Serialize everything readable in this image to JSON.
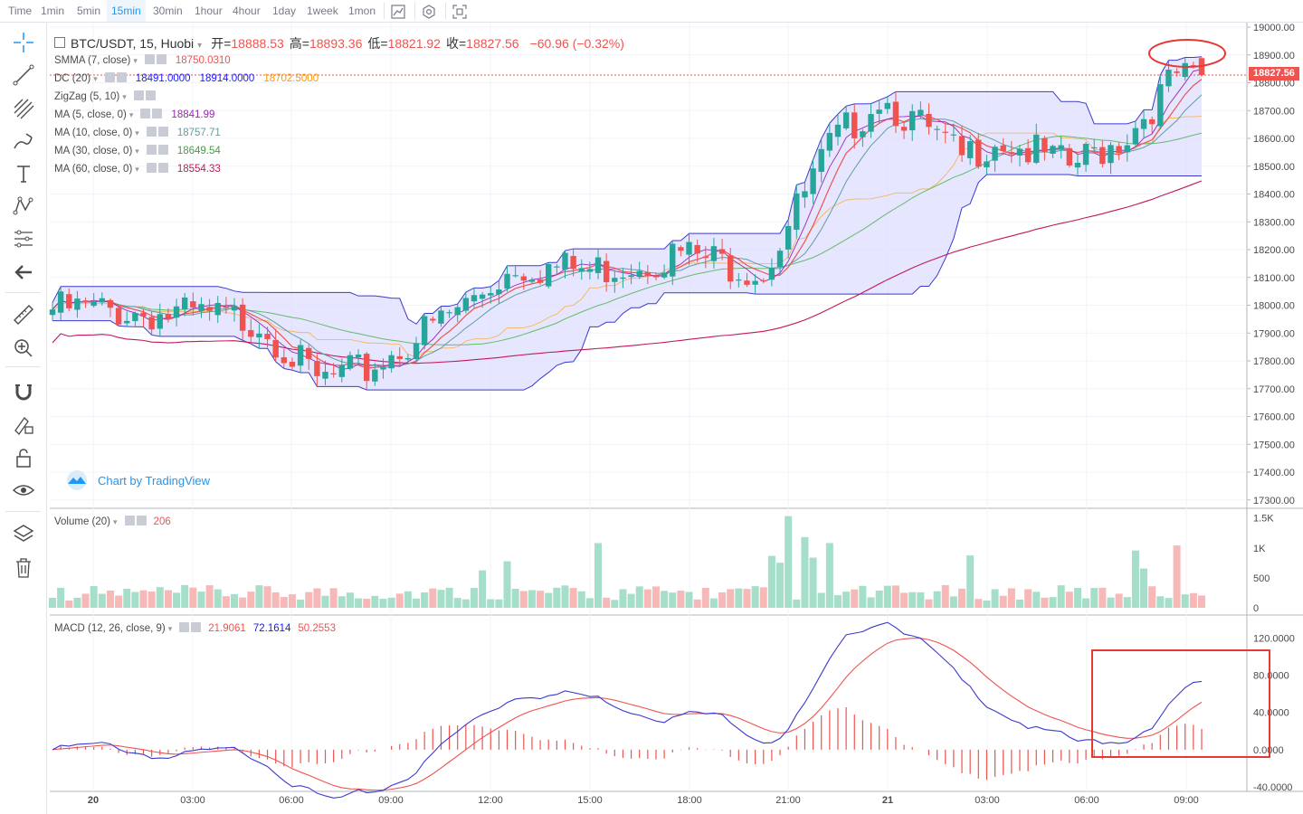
{
  "timeframes": [
    "Time",
    "1min",
    "5min",
    "15min",
    "30min",
    "1hour",
    "4hour",
    "1day",
    "1week",
    "1mon"
  ],
  "active_timeframe": "15min",
  "toolbar_icons": [
    "chart-style-icon",
    "settings-icon",
    "fullscreen-icon"
  ],
  "left_tools": [
    "crosshair-icon",
    "trend-line-icon",
    "pitchfork-icon",
    "brush-icon",
    "text-icon",
    "pattern-icon",
    "prediction-icon",
    "back-arrow-icon",
    "ruler-icon",
    "zoom-in-icon",
    "magnet-icon",
    "lock-drawing-icon",
    "unlock-icon",
    "eye-icon",
    "layers-icon",
    "trash-icon"
  ],
  "header": {
    "symbol": "BTC/USDT, 15, Huobi",
    "open_label": "开=",
    "open": "18888.53",
    "high_label": "高=",
    "high": "18893.36",
    "low_label": "低=",
    "low": "18821.92",
    "close_label": "收=",
    "close": "18827.56",
    "change": "−60.96 (−0.32%)"
  },
  "indicators": [
    {
      "name": "SMMA (7, close)",
      "values": [
        "18750.0310"
      ],
      "colors": [
        "#ef5350"
      ]
    },
    {
      "name": "DC (20)",
      "values": [
        "18491.0000",
        "18914.0000",
        "18702.5000"
      ],
      "colors": [
        "#1a1aff",
        "#1a1aff",
        "#ff9800"
      ]
    },
    {
      "name": "ZigZag (5, 10)",
      "values": [],
      "colors": []
    },
    {
      "name": "MA (5, close, 0)",
      "values": [
        "18841.99"
      ],
      "colors": [
        "#9c27b0"
      ]
    },
    {
      "name": "MA (10, close, 0)",
      "values": [
        "18757.71"
      ],
      "colors": [
        "#5f9ea0"
      ]
    },
    {
      "name": "MA (30, close, 0)",
      "values": [
        "18649.54"
      ],
      "colors": [
        "#43a047"
      ]
    },
    {
      "name": "MA (60, close, 0)",
      "values": [
        "18554.33"
      ],
      "colors": [
        "#c2185b"
      ]
    }
  ],
  "current_price_tag": "18827.56",
  "tv_logo_text": "Chart by TradingView",
  "price_axis": [
    "19000.00",
    "18900.00",
    "18800.00",
    "18700.00",
    "18600.00",
    "18500.00",
    "18400.00",
    "18300.00",
    "18200.00",
    "18100.00",
    "18000.00",
    "17900.00",
    "17800.00",
    "17700.00",
    "17600.00",
    "17500.00",
    "17400.00",
    "17300.00"
  ],
  "volume": {
    "name": "Volume (20)",
    "value": "206",
    "axis": [
      "1.5K",
      "1K",
      "500",
      "0"
    ]
  },
  "macd": {
    "name": "MACD (12, 26, close, 9)",
    "values": [
      "21.9061",
      "72.1614",
      "50.2553"
    ],
    "colors": [
      "#ef5350",
      "#1a1aff",
      "#ef5350"
    ],
    "axis": [
      "120.0000",
      "80.0000",
      "40.0000",
      "0.0000",
      "-40.0000"
    ]
  },
  "time_axis": [
    "20",
    "03:00",
    "06:00",
    "09:00",
    "12:00",
    "15:00",
    "18:00",
    "21:00",
    "21",
    "03:00",
    "06:00",
    "09:00"
  ],
  "colors": {
    "up": "#26a69a",
    "down": "#ef5350",
    "channel_fill": "#dcdcff",
    "channel_line": "#3a3ad0",
    "annotation": "#e53935",
    "accent": "#2196f3"
  },
  "chart_data": {
    "type": "candlestick",
    "symbol": "BTC/USDT",
    "interval": "15",
    "exchange": "Huobi",
    "x_ticks": [
      "20",
      "03:00",
      "06:00",
      "09:00",
      "12:00",
      "15:00",
      "18:00",
      "21:00",
      "21",
      "03:00",
      "06:00",
      "09:00"
    ],
    "ylim": [
      17250,
      19020
    ],
    "close_anchors": [
      {
        "t": "20",
        "close": 18020
      },
      {
        "t": "03:00",
        "close": 18000
      },
      {
        "t": "06:00",
        "close": 17980
      },
      {
        "t": "07:30",
        "close": 17760
      },
      {
        "t": "09:00",
        "close": 17800
      },
      {
        "t": "12:00",
        "close": 18040
      },
      {
        "t": "13:00",
        "close": 18180
      },
      {
        "t": "15:00",
        "close": 18160
      },
      {
        "t": "18:00",
        "close": 18220
      },
      {
        "t": "21:00",
        "close": 18160
      },
      {
        "t": "22:30",
        "close": 18600
      },
      {
        "t": "21 00:00",
        "close": 18790
      },
      {
        "t": "03:00",
        "close": 18560
      },
      {
        "t": "04:00",
        "close": 18640
      },
      {
        "t": "06:00",
        "close": 18530
      },
      {
        "t": "08:00",
        "close": 18650
      },
      {
        "t": "09:00",
        "close": 18860
      },
      {
        "t": "09:30",
        "close": 18827.56
      }
    ],
    "donchian": {
      "upper_last": 18914,
      "lower_last": 18491,
      "mid_last": 18702.5
    },
    "ma": {
      "ma5": 18841.99,
      "ma10": 18757.71,
      "ma30": 18649.54,
      "ma60": 18554.33,
      "smma7": 18750.031
    },
    "volume_last": 206,
    "volume_ylim": [
      0,
      1600
    ],
    "macd_last": {
      "hist": 21.9061,
      "macd": 72.1614,
      "signal": 50.2553
    },
    "macd_ylim": [
      -40,
      135
    ]
  }
}
